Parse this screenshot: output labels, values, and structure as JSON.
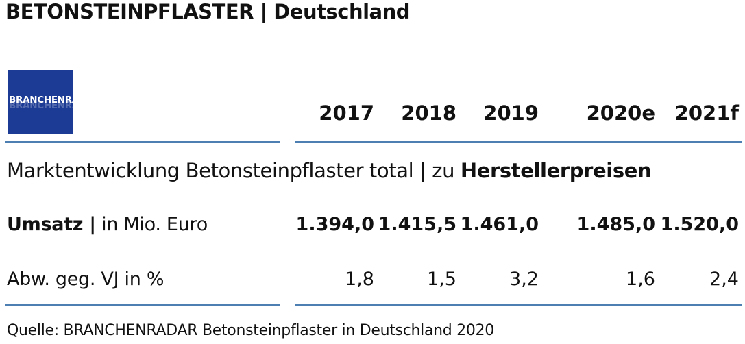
{
  "title": "BETONSTEINPFLASTER | Deutschland",
  "logo": {
    "part1": "BRANCHEN",
    "part2": "RADAR",
    "color": "#1c3b95"
  },
  "years": [
    "2017",
    "2018",
    "2019",
    "2020e",
    "2021f"
  ],
  "subtitle": {
    "normal": "Marktentwicklung Betonsteinpflaster total | zu ",
    "bold": "Herstellerpreisen"
  },
  "rows": [
    {
      "label_bold": "Umsatz |",
      "label_normal": " in Mio. Euro",
      "values": [
        "1.394,0",
        "1.415,5",
        "1.461,0",
        "1.485,0",
        "1.520,0"
      ]
    },
    {
      "label": "Abw. geg. VJ in %",
      "values": [
        "1,8",
        "1,5",
        "3,2",
        "1,6",
        "2,4"
      ]
    }
  ],
  "source": "Quelle: BRANCHENRADAR Betonsteinpflaster in Deutschland 2020",
  "colors": {
    "rule": "#4d7fb3"
  }
}
